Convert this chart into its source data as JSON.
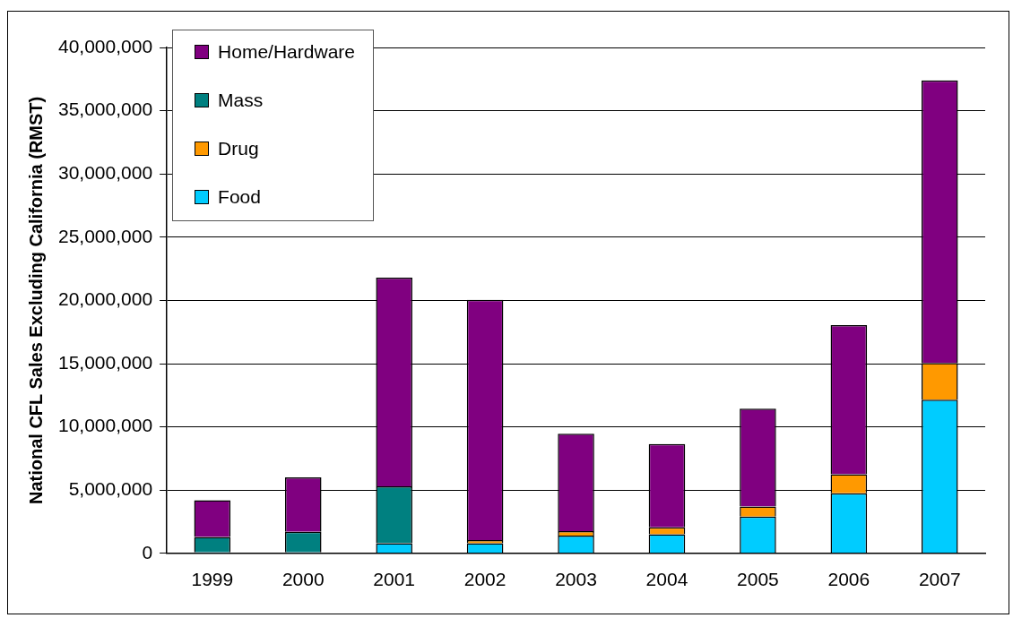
{
  "chart_data": {
    "type": "bar",
    "stacked": true,
    "ylabel": "National CFL Sales Excluding California (RMST)",
    "categories": [
      "1999",
      "2000",
      "2001",
      "2002",
      "2003",
      "2004",
      "2005",
      "2006",
      "2007"
    ],
    "series": [
      {
        "name": "Food",
        "color": "#00ccff",
        "values": [
          100000,
          100000,
          800000,
          800000,
          1400000,
          1500000,
          2900000,
          4750000,
          12150000
        ]
      },
      {
        "name": "Drug",
        "color": "#ff9900",
        "values": [
          0,
          0,
          0,
          250000,
          350000,
          550000,
          800000,
          1500000,
          2900000
        ]
      },
      {
        "name": "Mass",
        "color": "#008080",
        "values": [
          1200000,
          1600000,
          4500000,
          0,
          0,
          0,
          0,
          0,
          0
        ]
      },
      {
        "name": "Home/Hardware",
        "color": "#800080",
        "values": [
          2900000,
          4300000,
          16500000,
          19000000,
          7700000,
          6600000,
          7750000,
          11800000,
          22350000
        ]
      }
    ],
    "ylim": [
      0,
      40000000
    ],
    "yticks": [
      {
        "value": 0,
        "label": "0"
      },
      {
        "value": 5000000,
        "label": "5,000,000"
      },
      {
        "value": 10000000,
        "label": "10,000,000"
      },
      {
        "value": 15000000,
        "label": "15,000,000"
      },
      {
        "value": 20000000,
        "label": "20,000,000"
      },
      {
        "value": 25000000,
        "label": "25,000,000"
      },
      {
        "value": 30000000,
        "label": "30,000,000"
      },
      {
        "value": 35000000,
        "label": "35,000,000"
      },
      {
        "value": 40000000,
        "label": "40,000,000"
      }
    ],
    "grid": "y",
    "legend": "top left"
  }
}
